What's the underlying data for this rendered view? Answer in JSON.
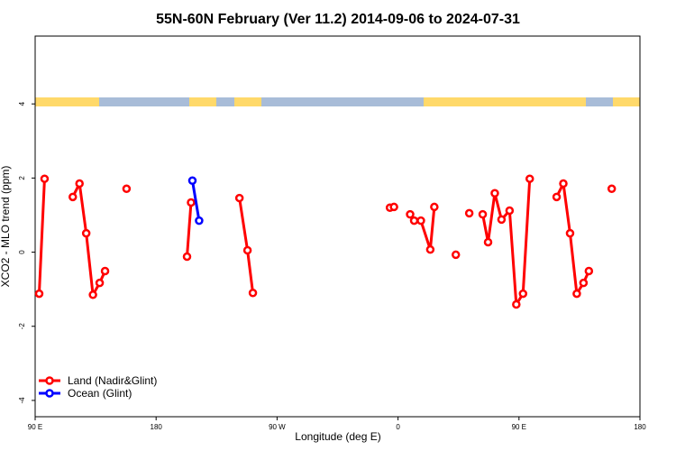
{
  "chart_data": {
    "type": "line",
    "title": "55N-60N February (Ver 11.2)   2014-09-06 to 2024-07-31",
    "x_label": "Longitude (deg E)",
    "y_label": "XCO2 - MLO trend (ppm)",
    "xlim": [
      90,
      540
    ],
    "ylim": [
      -4.44,
      5.83
    ],
    "xticks": [
      {
        "value": 90,
        "label": "90 E"
      },
      180,
      {
        "value": 270,
        "label": "90 W"
      },
      {
        "value": 360,
        "label": "0"
      },
      {
        "value": 450,
        "label": "90 E"
      },
      {
        "value": 540,
        "label": "180"
      }
    ],
    "yticks": [
      -4,
      -2,
      0,
      2,
      4
    ],
    "legend": "bottom-left",
    "series": [
      {
        "name": "Land (Nadir&Glint)",
        "color": "#ff0000",
        "x": [
          93,
          97,
          null,
          118,
          123,
          128,
          133,
          138,
          142,
          null,
          158,
          null,
          203,
          206,
          null,
          242,
          248,
          252,
          null,
          354,
          357,
          null,
          369,
          372,
          377,
          384,
          387,
          null,
          403,
          null,
          413,
          null,
          423,
          427,
          432,
          437,
          443,
          448,
          453,
          458,
          null,
          478,
          483,
          488,
          493,
          498,
          502,
          null,
          519
        ],
        "values": [
          -1.12,
          1.98,
          null,
          1.49,
          1.85,
          0.51,
          -1.15,
          -0.83,
          -0.51,
          null,
          1.71,
          null,
          -0.12,
          1.34,
          null,
          1.46,
          0.05,
          -1.1,
          null,
          1.2,
          1.22,
          null,
          1.02,
          0.85,
          0.85,
          0.07,
          1.22,
          null,
          -0.07,
          null,
          1.05,
          null,
          1.02,
          0.27,
          1.59,
          0.88,
          1.12,
          -1.41,
          -1.12,
          1.98,
          null,
          1.49,
          1.85,
          0.51,
          -1.12,
          -0.83,
          -0.51,
          null,
          1.71
        ]
      },
      {
        "name": "Ocean (Glint)",
        "color": "#0000ff",
        "x": [
          207,
          212
        ],
        "values": [
          1.93,
          0.85
        ]
      }
    ]
  }
}
